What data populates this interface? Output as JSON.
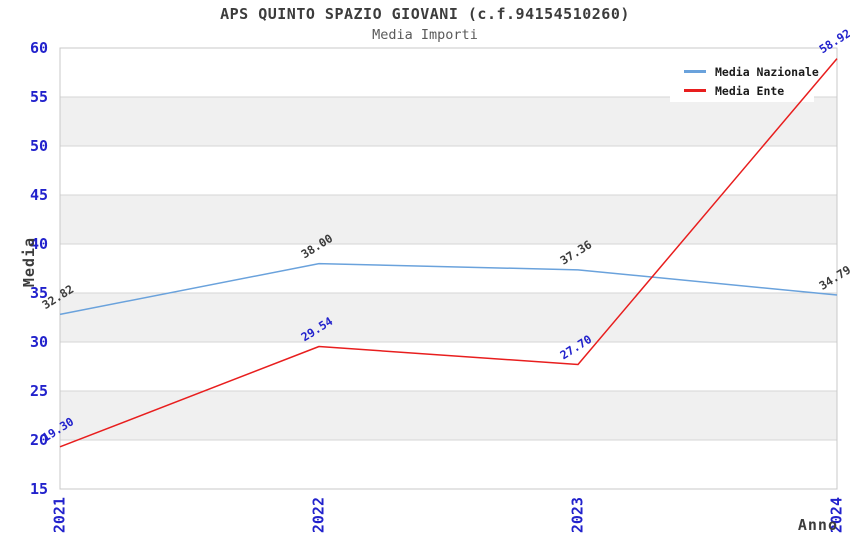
{
  "title": "APS QUINTO SPAZIO GIOVANI (c.f.94154510260)",
  "subtitle": "Media Importi",
  "chart_data": {
    "type": "line",
    "categories": [
      "2021",
      "2022",
      "2023",
      "2024"
    ],
    "series": [
      {
        "name": "Media Nazionale",
        "values": [
          32.82,
          38.0,
          37.36,
          34.79
        ],
        "labels": [
          "32.82",
          "38.00",
          "37.36",
          "34.79"
        ],
        "color": "#6aa2dc",
        "label_color": "#3c3c3c"
      },
      {
        "name": "Media Ente",
        "values": [
          19.3,
          29.54,
          27.7,
          58.92
        ],
        "labels": [
          "19.30",
          "29.54",
          "27.70",
          "58.92"
        ],
        "color": "#e81e1e",
        "label_color": "#2222cc"
      }
    ],
    "xlabel": "Anno",
    "ylabel": "Media",
    "ylim": [
      15,
      60
    ],
    "y_tick_step": 5,
    "y_tick_labels": [
      "15",
      "20",
      "25",
      "30",
      "35",
      "40",
      "45",
      "50",
      "55",
      "60"
    ],
    "grid": "horizontal",
    "legend_position": "top-right",
    "tick_label_color": "#2222cc",
    "band_colors": [
      "#ffffff",
      "#f0f0f0"
    ],
    "gridline_color": "#d6d6d6",
    "border_color": "#c8c8c8",
    "legend_background": "#ffffff"
  }
}
